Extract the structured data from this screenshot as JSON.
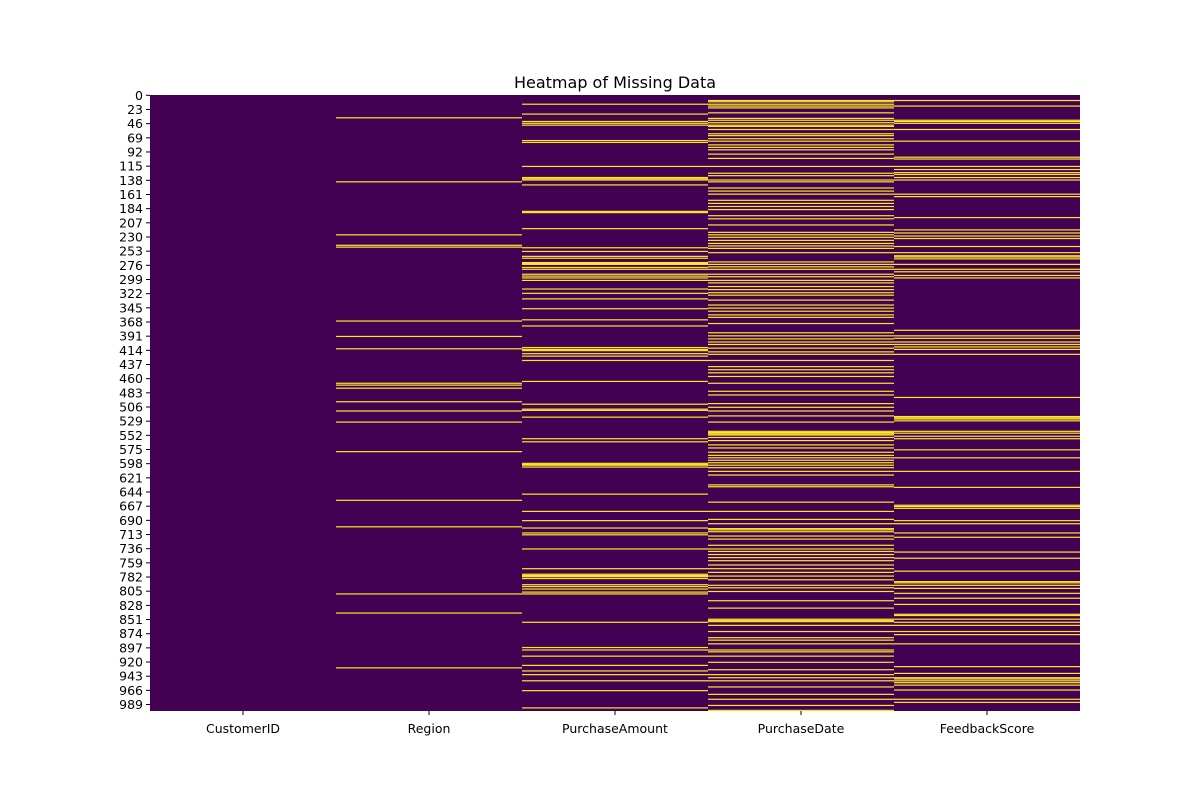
{
  "chart_data": {
    "type": "heatmap",
    "title": "Heatmap of Missing Data",
    "xlabel": "",
    "ylabel": "",
    "columns": [
      "CustomerID",
      "Region",
      "PurchaseAmount",
      "PurchaseDate",
      "FeedbackScore"
    ],
    "row_count": 1000,
    "y_tick_labels": [
      "0",
      "23",
      "46",
      "69",
      "92",
      "115",
      "138",
      "161",
      "184",
      "207",
      "230",
      "253",
      "276",
      "299",
      "322",
      "345",
      "368",
      "391",
      "414",
      "437",
      "460",
      "483",
      "506",
      "529",
      "552",
      "575",
      "598",
      "621",
      "644",
      "667",
      "690",
      "713",
      "736",
      "759",
      "782",
      "805",
      "828",
      "851",
      "874",
      "897",
      "920",
      "943",
      "966",
      "989"
    ],
    "colors": {
      "present": "#440154",
      "missing": "#fde725"
    },
    "missing_rows": {
      "CustomerID": [],
      "Region": [
        36,
        140,
        226,
        243,
        246,
        366,
        391,
        411,
        467,
        470,
        475,
        497,
        512,
        530,
        578,
        657,
        700,
        809,
        840,
        929
      ],
      "PurchaseAmount": [
        14,
        30,
        42,
        45,
        48,
        73,
        76,
        115,
        133,
        135,
        137,
        145,
        188,
        190,
        216,
        247,
        253,
        261,
        264,
        271,
        272,
        273,
        274,
        279,
        282,
        290,
        293,
        296,
        300,
        314,
        321,
        330,
        346,
        364,
        374,
        409,
        412,
        414,
        419,
        423,
        430,
        464,
        501,
        509,
        511,
        522,
        557,
        562,
        597,
        599,
        600,
        603,
        647,
        675,
        690,
        702,
        710,
        713,
        736,
        768,
        777,
        779,
        780,
        781,
        784,
        794,
        797,
        801,
        806,
        809,
        855,
        896,
        900,
        910,
        925,
        934,
        940,
        950,
        966,
        994
      ],
      "PurchaseDate": [
        8,
        10,
        14,
        17,
        20,
        28,
        37,
        40,
        44,
        48,
        50,
        55,
        62,
        65,
        70,
        74,
        80,
        84,
        88,
        95,
        102,
        115,
        126,
        130,
        137,
        140,
        150,
        155,
        160,
        170,
        175,
        180,
        185,
        195,
        200,
        210,
        222,
        226,
        230,
        235,
        240,
        244,
        248,
        255,
        270,
        274,
        278,
        282,
        290,
        294,
        300,
        304,
        310,
        315,
        320,
        324,
        332,
        340,
        345,
        350,
        356,
        360,
        370,
        385,
        390,
        395,
        400,
        404,
        410,
        416,
        420,
        430,
        440,
        445,
        450,
        456,
        467,
        480,
        486,
        500,
        506,
        512,
        520,
        530,
        545,
        547,
        549,
        551,
        555,
        560,
        567,
        572,
        579,
        584,
        588,
        592,
        596,
        600,
        604,
        610,
        616,
        632,
        635,
        660,
        675,
        688,
        695,
        703,
        705,
        708,
        715,
        720,
        730,
        736,
        740,
        745,
        750,
        755,
        762,
        768,
        774,
        780,
        786,
        795,
        799,
        805,
        820,
        832,
        850,
        852,
        854,
        860,
        870,
        880,
        884,
        890,
        900,
        903,
        910,
        920,
        932,
        940,
        945,
        950,
        960,
        972,
        980,
        990,
        998
      ],
      "FeedbackScore": [
        8,
        17,
        40,
        42,
        45,
        55,
        74,
        100,
        103,
        115,
        120,
        125,
        128,
        133,
        137,
        160,
        164,
        198,
        218,
        223,
        228,
        232,
        245,
        255,
        260,
        262,
        265,
        274,
        282,
        286,
        292,
        296,
        381,
        390,
        394,
        400,
        404,
        408,
        412,
        420,
        490,
        521,
        523,
        525,
        528,
        545,
        548,
        553,
        557,
        575,
        588,
        610,
        636,
        665,
        667,
        670,
        690,
        695,
        710,
        717,
        741,
        751,
        772,
        789,
        791,
        795,
        800,
        808,
        816,
        826,
        842,
        844,
        850,
        855,
        860,
        870,
        875,
        890,
        927,
        938,
        945,
        947,
        950,
        953,
        957,
        965,
        980,
        985
      ]
    }
  }
}
